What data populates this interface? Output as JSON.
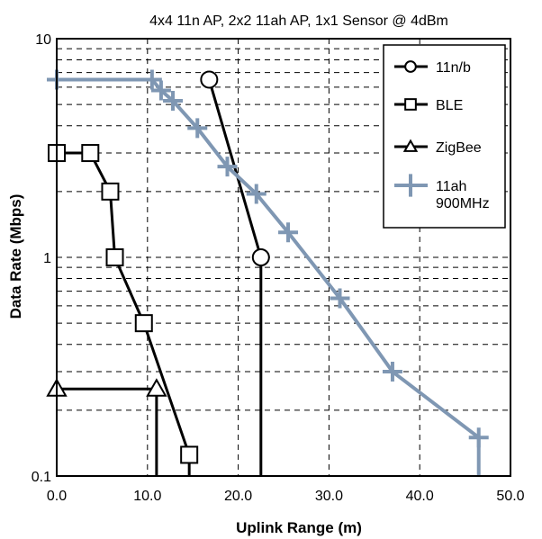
{
  "chart_data": {
    "type": "line",
    "title": "4x4 11n AP, 2x2 11ah AP, 1x1 Sensor @ 4dBm",
    "xlabel": "Uplink Range (m)",
    "ylabel": "Data Rate (Mbps)",
    "xlim": [
      0,
      50
    ],
    "ylim": [
      0.1,
      10
    ],
    "yscale": "log",
    "grid": true,
    "legend_position": "top-right",
    "x_ticks": [
      0,
      10,
      20,
      30,
      40,
      50
    ],
    "x_tick_labels": [
      "0.0",
      "10.0",
      "20.0",
      "30.0",
      "40.0",
      "50.0"
    ],
    "y_ticks": [
      0.1,
      1,
      10
    ],
    "y_tick_labels": [
      "0.1",
      "1",
      "10"
    ],
    "series": [
      {
        "name": "11n/b",
        "color": "#000000",
        "marker": "circle",
        "points": [
          [
            16.8,
            6.5
          ],
          [
            22.5,
            1.0
          ]
        ],
        "drop_to_floor": 22.5
      },
      {
        "name": "BLE",
        "color": "#000000",
        "marker": "square",
        "points": [
          [
            0,
            3
          ],
          [
            3.7,
            3
          ],
          [
            5.9,
            2
          ],
          [
            6.4,
            1
          ],
          [
            9.6,
            0.5
          ],
          [
            14.6,
            0.125
          ]
        ],
        "drop_to_floor": 14.6
      },
      {
        "name": "ZigBee",
        "color": "#000000",
        "marker": "triangle",
        "points": [
          [
            0,
            0.25
          ],
          [
            11,
            0.25
          ]
        ],
        "drop_to_floor": 11
      },
      {
        "name": "11ah 900MHz",
        "legend_lines": [
          "11ah",
          "900MHz"
        ],
        "color": "#7f97b3",
        "marker": "plus",
        "points": [
          [
            0,
            6.5
          ],
          [
            10.5,
            6.5
          ],
          [
            11.5,
            5.8
          ],
          [
            12.8,
            5.2
          ],
          [
            15.5,
            3.9
          ],
          [
            18.8,
            2.6
          ],
          [
            22,
            1.95
          ],
          [
            25.5,
            1.3
          ],
          [
            31.2,
            0.65
          ],
          [
            37,
            0.3
          ],
          [
            46.5,
            0.15
          ]
        ],
        "drop_to_floor": 46.5
      }
    ]
  }
}
